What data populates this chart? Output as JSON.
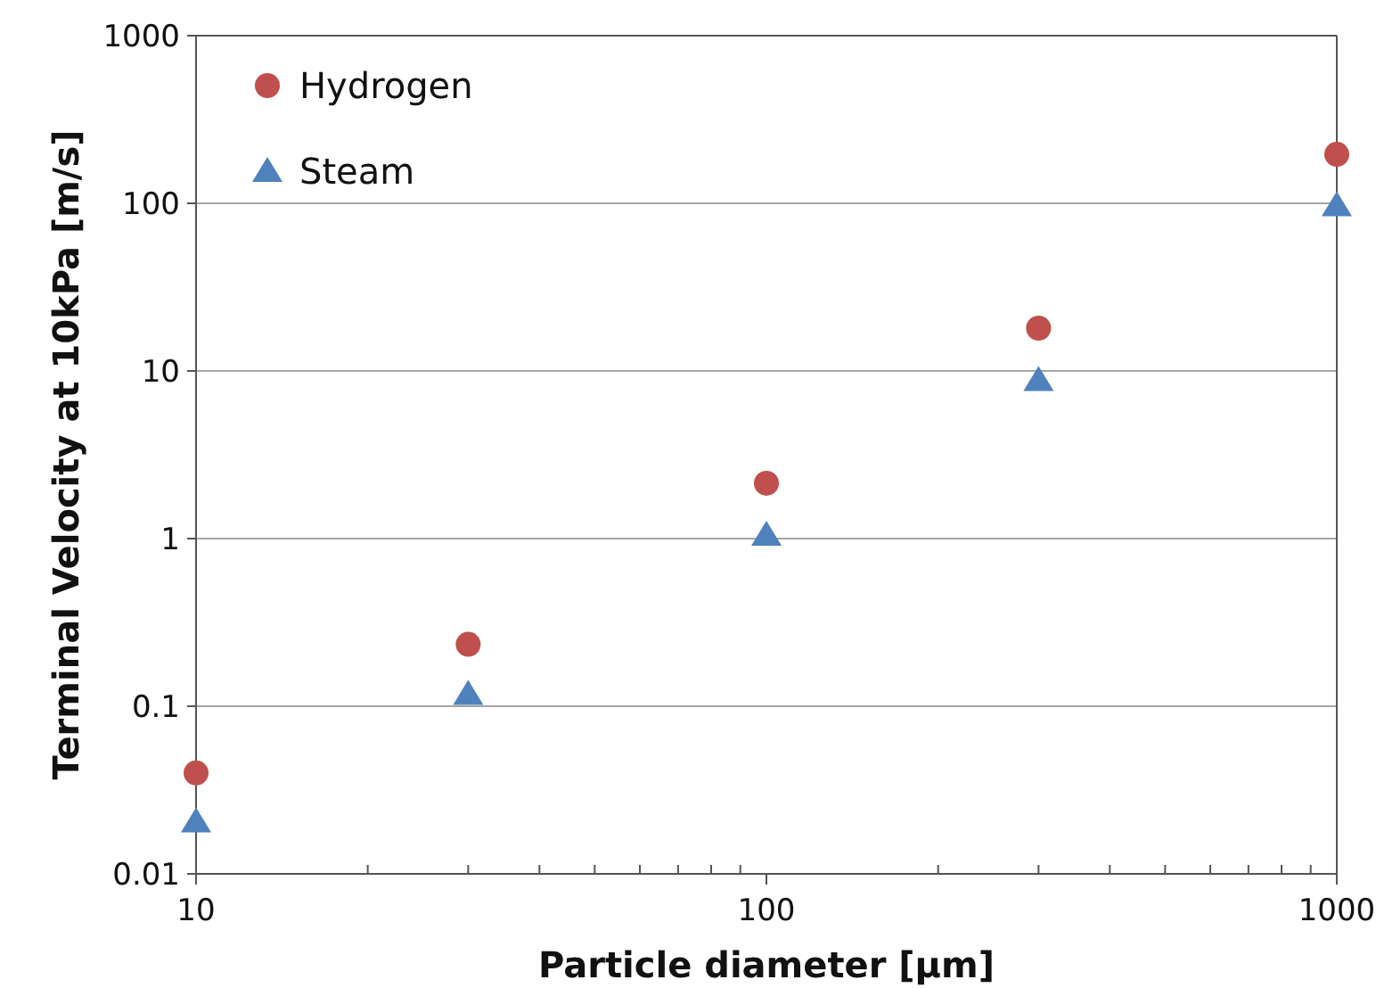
{
  "chart_data": {
    "type": "scatter",
    "xlabel": "Particle diameter [μm]",
    "ylabel": "Terminal Velocity at 10kPa [m/s]",
    "log": "xy",
    "grid": "y",
    "legend": "top left",
    "x": [
      10,
      30,
      100,
      300,
      1000
    ],
    "series": [
      {
        "name": "Hydrogen",
        "color": "#c0504d",
        "marker": "circle",
        "values": [
          0.04,
          0.234,
          2.14,
          18,
          196
        ]
      },
      {
        "name": "Steam",
        "color": "#4f81bd",
        "marker": "triangle",
        "values": [
          0.0205,
          0.118,
          1.05,
          8.8,
          97
        ]
      }
    ],
    "xlim": [
      10,
      1000
    ],
    "xticks": [
      10,
      {
        "value": 20,
        "label": null
      },
      {
        "value": 30,
        "label": null
      },
      {
        "value": 40,
        "label": null
      },
      {
        "value": 50,
        "label": null
      },
      {
        "value": 60,
        "label": null
      },
      {
        "value": 70,
        "label": null
      },
      {
        "value": 80,
        "label": null
      },
      {
        "value": 90,
        "label": null
      },
      100,
      {
        "value": 200,
        "label": null
      },
      {
        "value": 300,
        "label": null
      },
      {
        "value": 400,
        "label": null
      },
      {
        "value": 500,
        "label": null
      },
      {
        "value": 600,
        "label": null
      },
      {
        "value": 700,
        "label": null
      },
      {
        "value": 800,
        "label": null
      },
      {
        "value": 900,
        "label": null
      },
      1000
    ],
    "ylim": [
      0.01,
      1000
    ],
    "yticks": [
      0.01,
      0.1,
      1,
      10,
      100,
      1000
    ]
  }
}
